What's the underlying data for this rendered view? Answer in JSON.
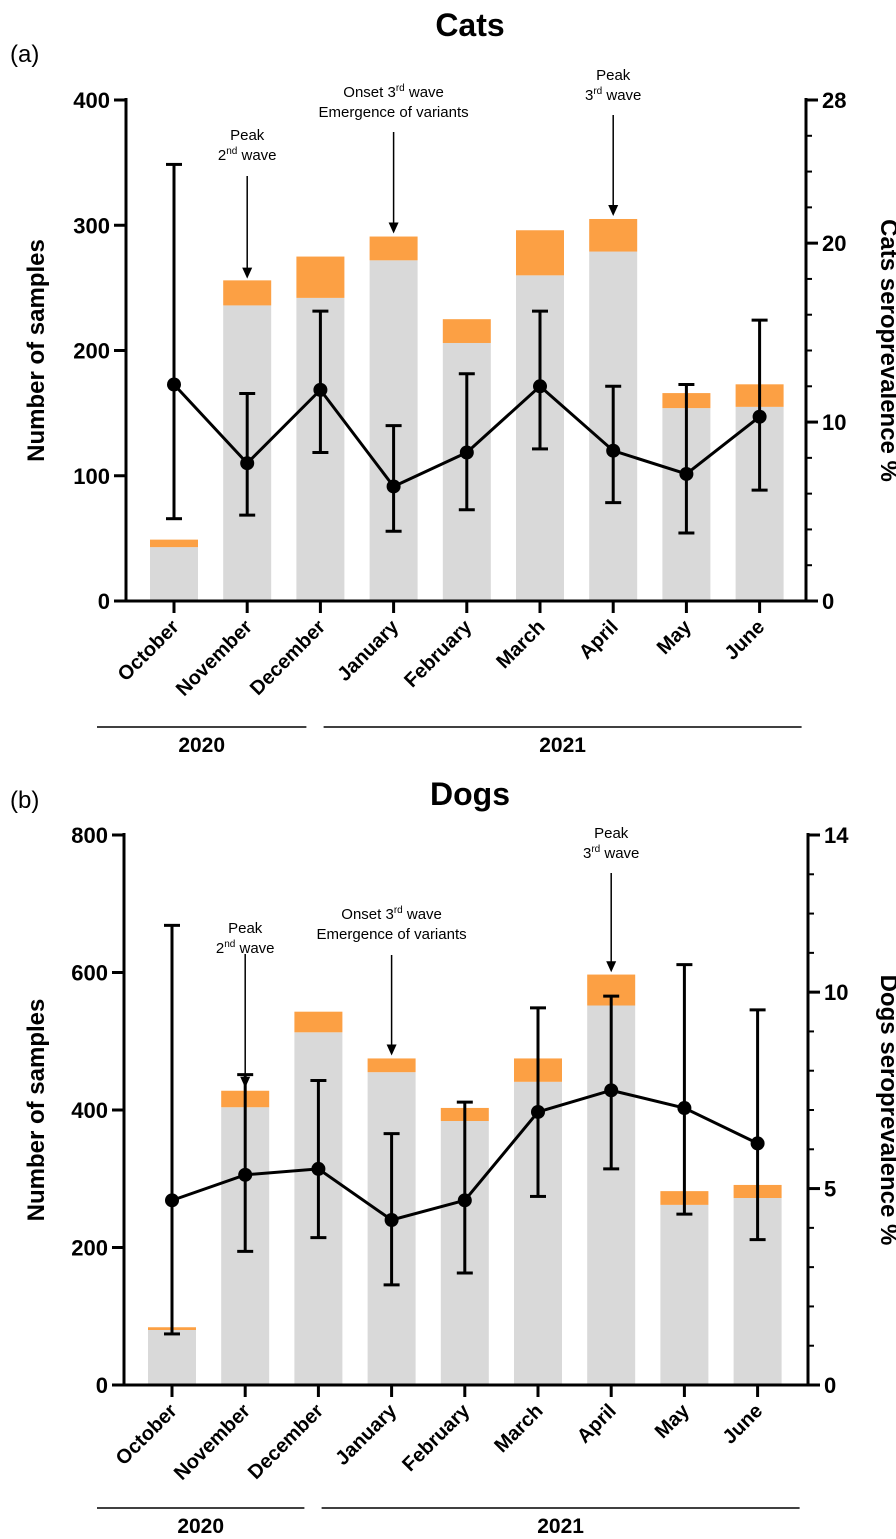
{
  "figure": {
    "colors": {
      "negative": "#d9d9d9",
      "positive": "#fca044",
      "line": "#000000"
    },
    "chart_data": [
      {
        "type": "bar",
        "panel_letter": "(a)",
        "title": "Cats",
        "categories": [
          "October",
          "November",
          "December",
          "January",
          "February",
          "March",
          "April",
          "May",
          "June"
        ],
        "years": [
          {
            "label": "2020",
            "from": 0,
            "to": 2
          },
          {
            "label": "2021",
            "from": 3,
            "to": 8
          }
        ],
        "ylabel": "Number of samples",
        "y2label": "Cats seroprevalence %",
        "ylim": [
          0,
          400
        ],
        "yticks": [
          0,
          100,
          200,
          300,
          400
        ],
        "y2lim": [
          0,
          28
        ],
        "y2ticks": [
          0,
          10,
          20,
          28
        ],
        "series": [
          {
            "key": "negative",
            "values": [
              43,
              236,
              242,
              272,
              206,
              260,
              279,
              154,
              155
            ]
          },
          {
            "key": "positive",
            "values": [
              6,
              20,
              33,
              19,
              19,
              36,
              26,
              12,
              18
            ]
          }
        ],
        "line": {
          "values": [
            12.1,
            7.7,
            11.8,
            6.4,
            8.3,
            12.0,
            8.4,
            7.1,
            10.3
          ],
          "err_low": [
            4.6,
            4.8,
            8.3,
            3.9,
            5.1,
            8.5,
            5.5,
            3.8,
            6.2
          ],
          "err_high": [
            24.4,
            11.6,
            16.2,
            9.8,
            12.7,
            16.2,
            12.0,
            12.1,
            15.7
          ]
        },
        "annotations": [
          {
            "index": 1,
            "lines": [
              "Peak",
              "2",
              "nd",
              " wave"
            ],
            "tip": 255
          },
          {
            "index": 3,
            "lines": [
              "Onset 3",
              "rd",
              " wave",
              "Emergence of variants"
            ],
            "tip": 291
          },
          {
            "index": 6,
            "lines": [
              "Peak",
              "3",
              "rd",
              " wave"
            ],
            "tip": 305
          }
        ]
      },
      {
        "type": "bar",
        "panel_letter": "(b)",
        "title": "Dogs",
        "categories": [
          "October",
          "November",
          "December",
          "January",
          "February",
          "March",
          "April",
          "May",
          "June"
        ],
        "years": [
          {
            "label": "2020",
            "from": 0,
            "to": 2
          },
          {
            "label": "2021",
            "from": 3,
            "to": 8
          }
        ],
        "ylabel": "Number of samples",
        "y2label": "Dogs seroprevalence %",
        "ylim": [
          0,
          800
        ],
        "yticks": [
          0,
          200,
          400,
          600,
          800
        ],
        "y2lim": [
          0,
          14
        ],
        "y2ticks": [
          0,
          5,
          10,
          14
        ],
        "series": [
          {
            "key": "negative",
            "values": [
              80,
              404,
              513,
              455,
              384,
              441,
              552,
              262,
              272
            ]
          },
          {
            "key": "positive",
            "values": [
              4,
              24,
              30,
              20,
              19,
              34,
              45,
              20,
              19
            ]
          }
        ],
        "line": {
          "values": [
            4.7,
            5.35,
            5.5,
            4.2,
            4.7,
            6.95,
            7.5,
            7.05,
            6.15
          ],
          "err_low": [
            1.3,
            3.4,
            3.75,
            2.55,
            2.85,
            4.8,
            5.5,
            4.35,
            3.7
          ],
          "err_high": [
            11.7,
            7.9,
            7.75,
            6.4,
            7.2,
            9.6,
            9.9,
            10.7,
            9.55
          ]
        },
        "annotations": [
          {
            "index": 1,
            "lines": [
              "Peak",
              "2",
              "nd",
              " wave"
            ],
            "tip": 428
          },
          {
            "index": 3,
            "lines": [
              "Onset 3",
              "rd",
              " wave",
              "Emergence of variants"
            ],
            "tip": 475
          },
          {
            "index": 6,
            "lines": [
              "Peak",
              "3",
              "rd",
              " wave"
            ],
            "tip": 596
          }
        ]
      }
    ]
  }
}
